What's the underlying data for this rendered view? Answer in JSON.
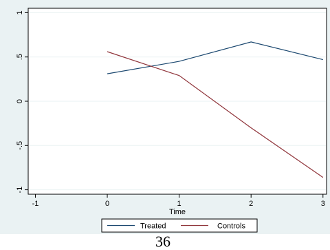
{
  "chart_data": {
    "type": "line",
    "title": "",
    "xlabel": "Time",
    "ylabel": "",
    "xlim": [
      -1.1,
      3.05
    ],
    "ylim": [
      -1.05,
      1.05
    ],
    "x_ticks": [
      -1,
      0,
      1,
      2,
      3
    ],
    "x_tick_labels": [
      "-1",
      "0",
      "1",
      "2",
      "3"
    ],
    "y_ticks": [
      -1,
      -0.5,
      0,
      0.5,
      1
    ],
    "y_tick_labels": [
      "-1",
      "-.5",
      "0",
      ".5",
      "1"
    ],
    "grid": "horizontal",
    "legend_position": "bottom",
    "x": [
      0,
      1,
      2,
      3
    ],
    "series": [
      {
        "name": "Treated",
        "color": "#1a476f",
        "values": [
          0.31,
          0.45,
          0.67,
          0.47
        ]
      },
      {
        "name": "Controls",
        "color": "#90353b",
        "values": [
          0.56,
          0.29,
          -0.3,
          -0.86
        ]
      }
    ]
  },
  "colors": {
    "outer_background": "#eaf2f3",
    "plot_background": "#ffffff",
    "gridline": "#eaf2f3"
  },
  "page_number": "36"
}
